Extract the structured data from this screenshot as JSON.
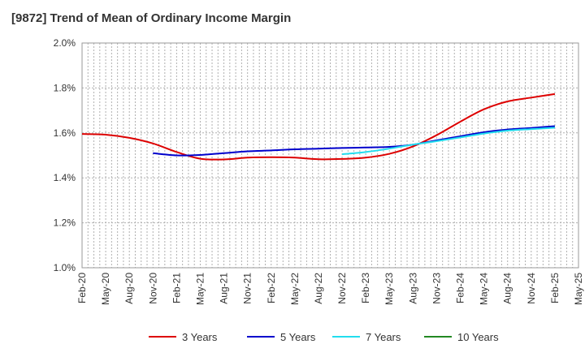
{
  "chart_data": {
    "type": "line",
    "title": "[9872]  Trend of Mean of Ordinary Income Margin",
    "xlabel": "",
    "ylabel": "",
    "x": [
      "Feb-20",
      "May-20",
      "Aug-20",
      "Nov-20",
      "Feb-21",
      "May-21",
      "Aug-21",
      "Nov-21",
      "Feb-22",
      "May-22",
      "Aug-22",
      "Nov-22",
      "Feb-23",
      "May-23",
      "Aug-23",
      "Nov-23",
      "Feb-24",
      "May-24",
      "Aug-24",
      "Nov-24",
      "Feb-25",
      "May-25"
    ],
    "y_ticks": [
      "1.0%",
      "1.2%",
      "1.4%",
      "1.6%",
      "1.8%",
      "2.0%"
    ],
    "ylim": [
      1.0,
      2.0
    ],
    "grid": true,
    "legend_position": "bottom",
    "series": [
      {
        "name": "3 Years",
        "color": "#dd0000",
        "values": [
          1.595,
          1.592,
          1.578,
          1.553,
          1.515,
          1.485,
          1.482,
          1.49,
          1.492,
          1.49,
          1.483,
          1.484,
          1.49,
          1.507,
          1.54,
          1.59,
          1.65,
          1.705,
          1.74,
          1.757,
          1.773,
          null
        ]
      },
      {
        "name": "5 Years",
        "color": "#0000cc",
        "values": [
          null,
          null,
          null,
          1.51,
          1.5,
          1.502,
          1.51,
          1.518,
          1.522,
          1.527,
          1.53,
          1.533,
          1.535,
          1.538,
          1.548,
          1.567,
          1.585,
          1.603,
          1.615,
          1.622,
          1.63,
          null
        ]
      },
      {
        "name": "7 Years",
        "color": "#22ddee",
        "values": [
          null,
          null,
          null,
          null,
          null,
          null,
          null,
          null,
          null,
          null,
          null,
          1.505,
          1.515,
          1.53,
          1.548,
          1.563,
          1.58,
          1.597,
          1.61,
          1.617,
          1.623,
          null
        ]
      },
      {
        "name": "10 Years",
        "color": "#228822",
        "values": [
          null,
          null,
          null,
          null,
          null,
          null,
          null,
          null,
          null,
          null,
          null,
          null,
          null,
          null,
          null,
          null,
          null,
          null,
          null,
          null,
          null,
          null
        ]
      }
    ]
  }
}
